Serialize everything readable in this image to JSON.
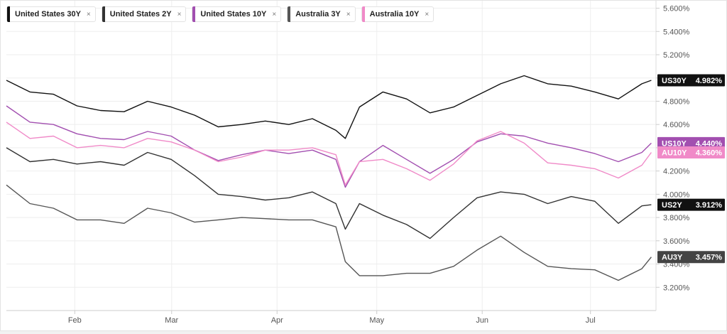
{
  "legend": [
    {
      "label": "United States 30Y",
      "close": "×",
      "color": "#111111"
    },
    {
      "label": "United States 2Y",
      "close": "×",
      "color": "#333333"
    },
    {
      "label": "United States 10Y",
      "close": "×",
      "color": "#a24fb0"
    },
    {
      "label": "Australia 3Y",
      "close": "×",
      "color": "#555555"
    },
    {
      "label": "Australia 10Y",
      "close": "×",
      "color": "#f08ac8"
    }
  ],
  "chart_data": {
    "type": "line",
    "x_labels": [
      "Feb",
      "Mar",
      "Apr",
      "May",
      "Jun",
      "Jul"
    ],
    "y_ticks": [
      "5.600%",
      "5.400%",
      "5.200%",
      "5.000%",
      "4.800%",
      "4.600%",
      "4.400%",
      "4.200%",
      "4.000%",
      "3.800%",
      "3.600%",
      "3.400%",
      "3.200%"
    ],
    "ylim": [
      3.0,
      5.64
    ],
    "xlim": [
      0,
      138
    ],
    "grid": true,
    "series": [
      {
        "name": "United States 30Y",
        "tag": "US30Y",
        "last": "4.982%",
        "color": "#111111",
        "badge_color": "#111111",
        "x": [
          0,
          5,
          10,
          15,
          20,
          25,
          30,
          35,
          40,
          45,
          50,
          55,
          60,
          65,
          70,
          72,
          75,
          80,
          85,
          90,
          95,
          100,
          105,
          110,
          115,
          120,
          125,
          130,
          135,
          137
        ],
        "y": [
          4.98,
          4.88,
          4.86,
          4.76,
          4.72,
          4.71,
          4.8,
          4.75,
          4.68,
          4.58,
          4.6,
          4.63,
          4.6,
          4.65,
          4.55,
          4.48,
          4.75,
          4.88,
          4.82,
          4.7,
          4.75,
          4.85,
          4.95,
          5.02,
          4.95,
          4.93,
          4.88,
          4.82,
          4.95,
          4.98
        ]
      },
      {
        "name": "United States 10Y",
        "tag": "US10Y",
        "last": "4.440%",
        "color": "#a24fb0",
        "badge_color": "#a24fb0",
        "x": [
          0,
          5,
          10,
          15,
          20,
          25,
          30,
          35,
          40,
          45,
          50,
          55,
          60,
          65,
          70,
          72,
          75,
          80,
          85,
          90,
          95,
          100,
          105,
          110,
          115,
          120,
          125,
          130,
          135,
          137
        ],
        "y": [
          4.76,
          4.62,
          4.6,
          4.52,
          4.48,
          4.47,
          4.54,
          4.5,
          4.38,
          4.29,
          4.34,
          4.38,
          4.35,
          4.38,
          4.3,
          4.06,
          4.28,
          4.42,
          4.3,
          4.18,
          4.3,
          4.45,
          4.52,
          4.5,
          4.44,
          4.4,
          4.35,
          4.28,
          4.36,
          4.44
        ]
      },
      {
        "name": "Australia 10Y",
        "tag": "AU10Y",
        "last": "4.360%",
        "color": "#f08ac8",
        "badge_color": "#f08ac8",
        "x": [
          0,
          5,
          10,
          15,
          20,
          25,
          30,
          35,
          40,
          45,
          50,
          55,
          60,
          65,
          70,
          72,
          75,
          80,
          85,
          90,
          95,
          100,
          105,
          110,
          115,
          120,
          125,
          130,
          135,
          137
        ],
        "y": [
          4.62,
          4.48,
          4.5,
          4.4,
          4.42,
          4.4,
          4.48,
          4.45,
          4.38,
          4.28,
          4.32,
          4.38,
          4.38,
          4.4,
          4.34,
          4.08,
          4.28,
          4.3,
          4.22,
          4.12,
          4.26,
          4.46,
          4.54,
          4.44,
          4.27,
          4.25,
          4.22,
          4.14,
          4.25,
          4.36
        ]
      },
      {
        "name": "United States 2Y",
        "tag": "US2Y",
        "last": "3.912%",
        "color": "#333333",
        "badge_color": "#111111",
        "x": [
          0,
          5,
          10,
          15,
          20,
          25,
          30,
          35,
          40,
          45,
          50,
          55,
          60,
          65,
          70,
          72,
          75,
          80,
          85,
          90,
          95,
          100,
          105,
          110,
          115,
          120,
          125,
          130,
          135,
          137
        ],
        "y": [
          4.4,
          4.28,
          4.3,
          4.26,
          4.28,
          4.25,
          4.36,
          4.3,
          4.16,
          4.0,
          3.98,
          3.95,
          3.97,
          4.02,
          3.92,
          3.7,
          3.92,
          3.82,
          3.74,
          3.62,
          3.8,
          3.97,
          4.02,
          4.0,
          3.92,
          3.98,
          3.94,
          3.75,
          3.9,
          3.91
        ]
      },
      {
        "name": "Australia 3Y",
        "tag": "AU3Y",
        "last": "3.457%",
        "color": "#555555",
        "badge_color": "#444444",
        "x": [
          0,
          5,
          10,
          15,
          20,
          25,
          30,
          35,
          40,
          45,
          50,
          55,
          60,
          65,
          70,
          72,
          75,
          80,
          85,
          90,
          95,
          100,
          105,
          110,
          115,
          120,
          125,
          130,
          135,
          137
        ],
        "y": [
          4.08,
          3.92,
          3.88,
          3.78,
          3.78,
          3.75,
          3.88,
          3.84,
          3.76,
          3.78,
          3.8,
          3.79,
          3.78,
          3.78,
          3.72,
          3.42,
          3.3,
          3.3,
          3.32,
          3.32,
          3.38,
          3.52,
          3.64,
          3.5,
          3.38,
          3.36,
          3.35,
          3.26,
          3.36,
          3.46
        ]
      }
    ]
  }
}
